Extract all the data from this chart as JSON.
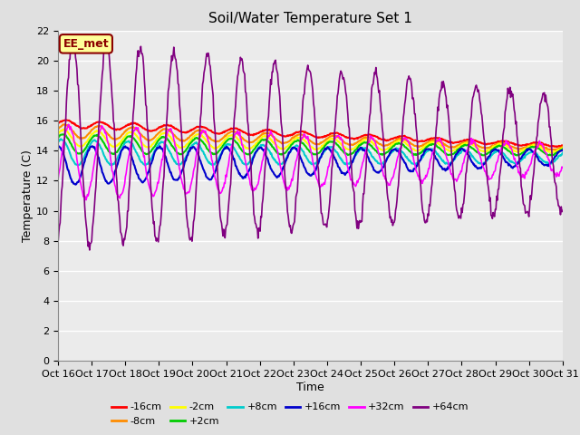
{
  "title": "Soil/Water Temperature Set 1",
  "xlabel": "Time",
  "ylabel": "Temperature (C)",
  "ylim": [
    0,
    22
  ],
  "yticks": [
    0,
    2,
    4,
    6,
    8,
    10,
    12,
    14,
    16,
    18,
    20,
    22
  ],
  "xtick_labels": [
    "Oct 16",
    "Oct 17",
    "Oct 18",
    "Oct 19",
    "Oct 20",
    "Oct 21",
    "Oct 22",
    "Oct 23",
    "Oct 24",
    "Oct 25",
    "Oct 26",
    "Oct 27",
    "Oct 28",
    "Oct 29",
    "Oct 30",
    "Oct 31"
  ],
  "annotation_text": "EE_met",
  "annotation_color": "#8B0000",
  "annotation_bg": "#FFFF99",
  "series_order": [
    "-16cm",
    "-8cm",
    "-2cm",
    "+2cm",
    "+8cm",
    "+16cm",
    "+32cm",
    "+64cm"
  ],
  "series": {
    "-16cm": {
      "color": "#FF0000",
      "linewidth": 1.5
    },
    "-8cm": {
      "color": "#FF8C00",
      "linewidth": 1.5
    },
    "-2cm": {
      "color": "#FFFF00",
      "linewidth": 1.5
    },
    "+2cm": {
      "color": "#00CC00",
      "linewidth": 1.5
    },
    "+8cm": {
      "color": "#00CCCC",
      "linewidth": 1.5
    },
    "+16cm": {
      "color": "#0000CC",
      "linewidth": 1.5
    },
    "+32cm": {
      "color": "#FF00FF",
      "linewidth": 1.2
    },
    "+64cm": {
      "color": "#800080",
      "linewidth": 1.2
    }
  },
  "background_color": "#E0E0E0",
  "plot_bg": "#EBEBEB",
  "grid_color": "#FFFFFF",
  "title_fontsize": 11,
  "label_fontsize": 9,
  "tick_fontsize": 8,
  "legend_fontsize": 8
}
